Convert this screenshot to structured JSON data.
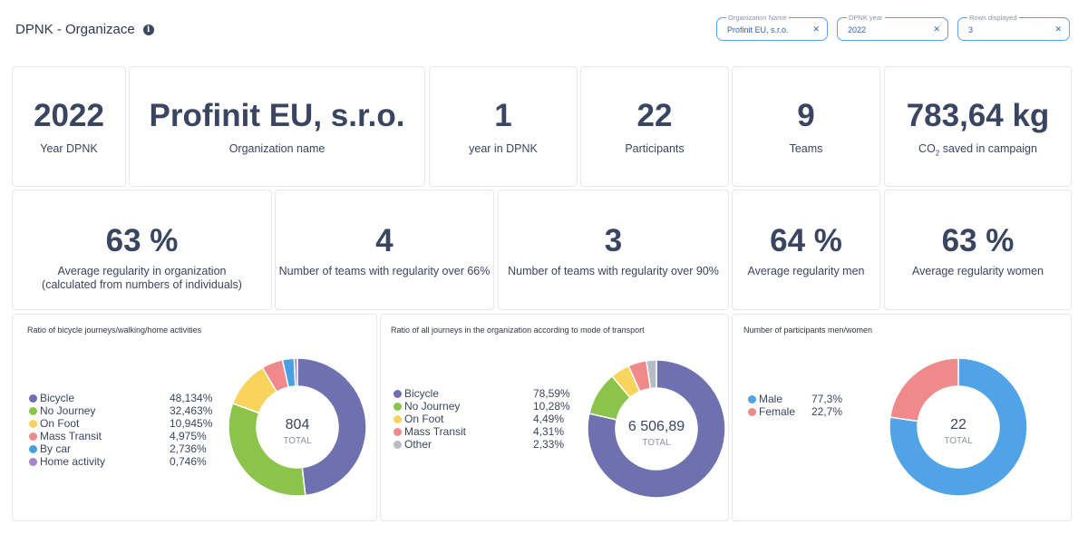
{
  "header": {
    "title": "DPNK - Organizace",
    "info_icon": "info-icon"
  },
  "filters": [
    {
      "label": "Organization Name",
      "value": "Profinit EU, s.r.o."
    },
    {
      "label": "DPNK year",
      "value": "2022"
    },
    {
      "label": "Rows displayed",
      "value": "3"
    }
  ],
  "kpis_row1": [
    {
      "value": "2022",
      "label": "Year DPNK"
    },
    {
      "value": "Profinit EU, s.r.o.",
      "label": "Organization name"
    },
    {
      "value": "1",
      "label": "year in DPNK"
    },
    {
      "value": "22",
      "label": "Participants"
    },
    {
      "value": "9",
      "label": "Teams"
    },
    {
      "value": "783,64 kg",
      "label_prefix": "CO",
      "label_sub": "2",
      "label_suffix": " saved in campaign"
    }
  ],
  "kpis_row2": [
    {
      "value": "63 %",
      "label_line1": "Average regularity in organization",
      "label_line2": "(calculated from numbers of individuals)"
    },
    {
      "value": "4",
      "label_line1": "Number of teams with regularity over 66%"
    },
    {
      "value": "3",
      "label_line1": "Number of teams with regularity over 90%"
    },
    {
      "value": "64 %",
      "label_line1": "Average regularity men"
    },
    {
      "value": "63 %",
      "label_line1": "Average regularity women"
    }
  ],
  "colors": {
    "bicycle": "#6e70b0",
    "no_journey": "#8cc34a",
    "on_foot": "#f8d45c",
    "mass_transit": "#f08a8a",
    "by_car": "#4a9fe3",
    "home_activity": "#a585c9",
    "other": "#b9bcc4",
    "male": "#4fa3e6",
    "female": "#f08a8a",
    "filter_border": "#5aa0e6"
  },
  "charts": {
    "bike_walk": {
      "title": "Ratio of bicycle journeys/walking/home activities",
      "legend": [
        {
          "name": "Bicycle",
          "pct": "48,134%"
        },
        {
          "name": "No Journey",
          "pct": "32,463%"
        },
        {
          "name": "On Foot",
          "pct": "10,945%"
        },
        {
          "name": "Mass Transit",
          "pct": "4,975%"
        },
        {
          "name": "By car",
          "pct": "2,736%"
        },
        {
          "name": "Home activity",
          "pct": "0,746%"
        }
      ],
      "center_value": "804",
      "center_label": "TOTAL"
    },
    "mode": {
      "title": "Ratio of all journeys in the organization according to mode of transport",
      "legend": [
        {
          "name": "Bicycle",
          "pct": "78,59%"
        },
        {
          "name": "No Journey",
          "pct": "10,28%"
        },
        {
          "name": "On Foot",
          "pct": "4,49%"
        },
        {
          "name": "Mass Transit",
          "pct": "4,31%"
        },
        {
          "name": "Other",
          "pct": "2,33%"
        }
      ],
      "center_value": "6 506,89",
      "center_label": "TOTAL"
    },
    "gender": {
      "title": "Number of participants men/women",
      "legend": [
        {
          "name": "Male",
          "pct": "77,3%"
        },
        {
          "name": "Female",
          "pct": "22,7%"
        }
      ],
      "center_value": "22",
      "center_label": "TOTAL"
    }
  },
  "chart_data": [
    {
      "type": "pie",
      "title": "Ratio of bicycle journeys/walking/home activities",
      "categories": [
        "Bicycle",
        "No Journey",
        "On Foot",
        "Mass Transit",
        "By car",
        "Home activity"
      ],
      "values": [
        48.134,
        32.463,
        10.945,
        4.975,
        2.736,
        0.746
      ],
      "colors": [
        "#6e70b0",
        "#8cc34a",
        "#f8d45c",
        "#f08a8a",
        "#4a9fe3",
        "#a585c9"
      ],
      "total": 804
    },
    {
      "type": "pie",
      "title": "Ratio of all journeys in the organization according to mode of transport",
      "categories": [
        "Bicycle",
        "No Journey",
        "On Foot",
        "Mass Transit",
        "Other"
      ],
      "values": [
        78.59,
        10.28,
        4.49,
        4.31,
        2.33
      ],
      "colors": [
        "#6e70b0",
        "#8cc34a",
        "#f8d45c",
        "#f08a8a",
        "#b9bcc4"
      ],
      "total": 6506.89
    },
    {
      "type": "pie",
      "title": "Number of participants men/women",
      "categories": [
        "Male",
        "Female"
      ],
      "values": [
        77.3,
        22.7
      ],
      "colors": [
        "#4fa3e6",
        "#f08a8a"
      ],
      "total": 22
    }
  ]
}
